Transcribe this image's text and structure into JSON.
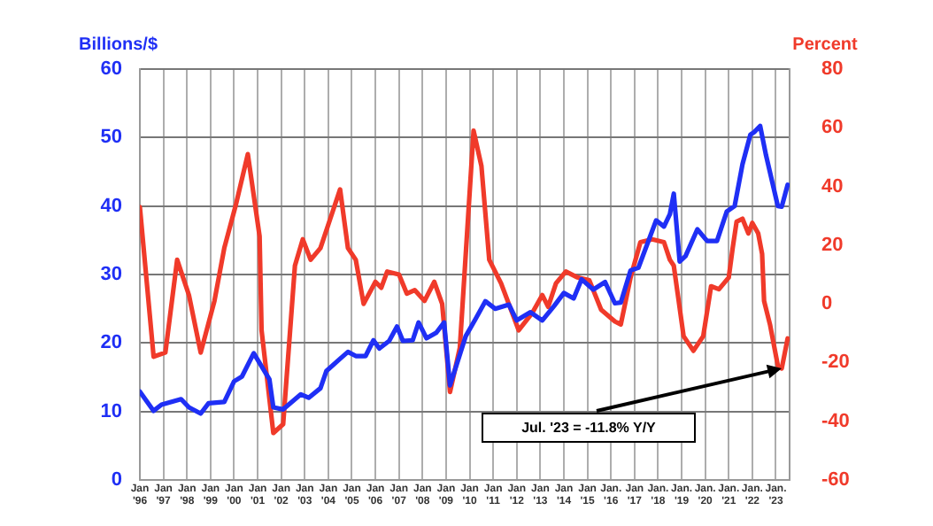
{
  "chart_data": {
    "type": "line",
    "ylabel": "Billions/$",
    "y2label": "Percent",
    "xlim": [
      "1996-01",
      "2023-08"
    ],
    "xticks": [
      {
        "value": "1996-01",
        "label": "Jan '96"
      },
      {
        "value": "1997-01",
        "label": "Jan '97"
      },
      {
        "value": "1998-01",
        "label": "Jan '98"
      },
      {
        "value": "1999-01",
        "label": "Jan '99"
      },
      {
        "value": "2000-01",
        "label": "Jan '00"
      },
      {
        "value": "2001-01",
        "label": "Jan '01"
      },
      {
        "value": "2002-01",
        "label": "Jan '02"
      },
      {
        "value": "2003-01",
        "label": "Jan '03"
      },
      {
        "value": "2004-01",
        "label": "Jan '04"
      },
      {
        "value": "2005-01",
        "label": "Jan '05"
      },
      {
        "value": "2006-01",
        "label": "Jan '06"
      },
      {
        "value": "2007-01",
        "label": "Jan '07"
      },
      {
        "value": "2008-01",
        "label": "Jan '08"
      },
      {
        "value": "2009-01",
        "label": "Jan '09"
      },
      {
        "value": "2010-01",
        "label": "Jan '10"
      },
      {
        "value": "2011-01",
        "label": "Jan '11"
      },
      {
        "value": "2012-01",
        "label": "Jan '12"
      },
      {
        "value": "2013-01",
        "label": "Jan '13"
      },
      {
        "value": "2014-01",
        "label": "Jan '14"
      },
      {
        "value": "2015-01",
        "label": "Jan '15"
      },
      {
        "value": "2016-01",
        "label": "Jan. '16"
      },
      {
        "value": "2017-01",
        "label": "Jan '17"
      },
      {
        "value": "2018-01",
        "label": "Jan. '18"
      },
      {
        "value": "2019-01",
        "label": "Jan. '19"
      },
      {
        "value": "2020-01",
        "label": "Jan. '20"
      },
      {
        "value": "2021-01",
        "label": "Jan. '21"
      },
      {
        "value": "2022-01",
        "label": "Jan. '22"
      },
      {
        "value": "2023-01",
        "label": "Jan. '23"
      }
    ],
    "ylim": [
      0,
      60
    ],
    "yticks": [
      0,
      10,
      20,
      30,
      40,
      50,
      60
    ],
    "y2lim": [
      -60,
      80
    ],
    "y2ticks": [
      -60,
      -40,
      -20,
      0,
      20,
      40,
      60,
      80
    ],
    "grid": true,
    "legend": false,
    "marker": "none",
    "line_style": "solid",
    "annotations": [
      {
        "text": "Jul. '23 = -11.8% Y/Y",
        "x": "2023-04",
        "y": 16.3
      }
    ],
    "series": [
      {
        "color": "#1f2ff5",
        "x": [
          "1996-01",
          "1996-08",
          "1996-12",
          "1997-10",
          "1998-02",
          "1998-08",
          "1998-12",
          "1999-08",
          "2000-01",
          "2000-05",
          "2000-11",
          "2001-07",
          "2001-09",
          "2002-02",
          "2002-11",
          "2003-03",
          "2003-09",
          "2003-12",
          "2004-07",
          "2004-11",
          "2005-03",
          "2005-08",
          "2005-12",
          "2006-03",
          "2006-08",
          "2006-12",
          "2007-03",
          "2007-08",
          "2007-11",
          "2008-03",
          "2008-08",
          "2008-12",
          "2009-03",
          "2009-11",
          "2010-04",
          "2010-09",
          "2011-02",
          "2011-09",
          "2012-01",
          "2012-08",
          "2013-02",
          "2013-08",
          "2014-01",
          "2014-06",
          "2014-10",
          "2015-04",
          "2015-10",
          "2016-03",
          "2016-06",
          "2016-11",
          "2017-03",
          "2017-12",
          "2018-04",
          "2018-07",
          "2018-09",
          "2018-12",
          "2019-03",
          "2019-09",
          "2020-02",
          "2020-07",
          "2020-12",
          "2021-04",
          "2021-08",
          "2021-12",
          "2022-02",
          "2022-05",
          "2022-08",
          "2023-02",
          "2023-04",
          "2023-07"
        ],
        "values": [
          12.9,
          10.1,
          11.0,
          11.8,
          10.6,
          9.7,
          11.2,
          11.4,
          14.4,
          15.1,
          18.5,
          14.7,
          10.6,
          10.3,
          12.5,
          12.0,
          13.4,
          15.9,
          17.7,
          18.7,
          18.1,
          18.1,
          20.4,
          19.2,
          20.3,
          22.4,
          20.3,
          20.4,
          23.0,
          20.7,
          21.5,
          23.0,
          13.8,
          21.0,
          23.5,
          26.1,
          25.0,
          25.6,
          23.3,
          24.5,
          23.3,
          25.4,
          27.3,
          26.5,
          29.3,
          27.8,
          28.9,
          25.8,
          25.9,
          30.6,
          31.0,
          37.9,
          37.0,
          38.8,
          41.8,
          31.9,
          32.7,
          36.6,
          34.9,
          34.9,
          39.2,
          40.0,
          46.1,
          50.4,
          50.8,
          51.7,
          47.4,
          40.0,
          39.9,
          43.1
        ]
      },
      {
        "color": "#f03a2a",
        "axis": "y2",
        "x": [
          "1996-01",
          "1996-08",
          "1997-02",
          "1997-08",
          "1998-02",
          "1998-08",
          "1999-03",
          "1999-08",
          "2000-02",
          "2000-08",
          "2001-02",
          "2001-03",
          "2001-09",
          "2002-02",
          "2002-08",
          "2002-12",
          "2003-04",
          "2003-09",
          "2004-02",
          "2004-07",
          "2004-11",
          "2005-03",
          "2005-07",
          "2006-01",
          "2006-04",
          "2006-07",
          "2007-01",
          "2007-05",
          "2007-09",
          "2008-02",
          "2008-07",
          "2008-11",
          "2009-03",
          "2009-08",
          "2010-03",
          "2010-07",
          "2010-11",
          "2011-05",
          "2012-02",
          "2012-09",
          "2013-02",
          "2013-05",
          "2013-09",
          "2014-02",
          "2014-08",
          "2015-02",
          "2015-08",
          "2016-03",
          "2016-06",
          "2016-11",
          "2017-04",
          "2017-10",
          "2018-04",
          "2018-07",
          "2018-09",
          "2019-02",
          "2019-07",
          "2019-12",
          "2020-04",
          "2020-08",
          "2021-01",
          "2021-03",
          "2021-05",
          "2021-08",
          "2021-11",
          "2022-01",
          "2022-04",
          "2022-06",
          "2022-07",
          "2022-10",
          "2023-02",
          "2023-04",
          "2023-07"
        ],
        "values": [
          33,
          -18,
          -16.6,
          15,
          3,
          -16.6,
          1,
          19,
          34,
          51,
          23,
          -9,
          -44,
          -41,
          13,
          22,
          15,
          19,
          29,
          39,
          19,
          15,
          0,
          7.5,
          5.5,
          11,
          10,
          3.5,
          4.7,
          1,
          7.5,
          0,
          -30,
          -15,
          59,
          47,
          15,
          7,
          -9,
          -3,
          3,
          -1,
          7,
          11,
          9,
          8,
          -2,
          -6,
          -7,
          9,
          21,
          22,
          21,
          15,
          13,
          -11,
          -16,
          -11,
          6,
          5,
          9,
          19,
          28,
          29,
          24,
          27.6,
          24,
          17,
          1,
          -7,
          -21,
          -22,
          -11.8
        ]
      }
    ]
  }
}
